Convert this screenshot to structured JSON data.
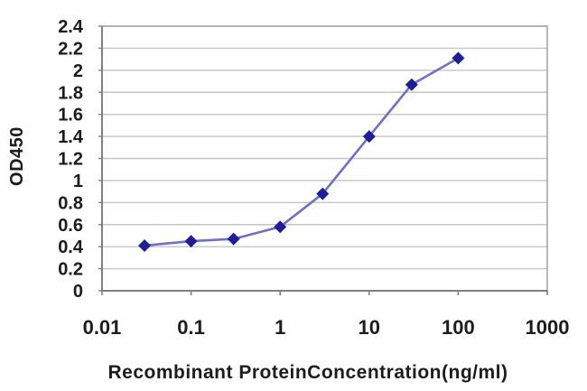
{
  "chart_data": {
    "type": "line",
    "title": "",
    "xlabel": "Recombinant ProteinConcentration(ng/ml)",
    "ylabel": "OD450",
    "xscale": "log",
    "xlim": [
      0.01,
      1000
    ],
    "ylim": [
      0,
      2.4
    ],
    "xticks": [
      {
        "value": 0.01,
        "label": "0.01"
      },
      {
        "value": 0.1,
        "label": "0.1"
      },
      {
        "value": 1,
        "label": "1"
      },
      {
        "value": 10,
        "label": "10"
      },
      {
        "value": 100,
        "label": "100"
      },
      {
        "value": 1000,
        "label": "1000"
      }
    ],
    "yticks": [
      {
        "value": 0,
        "label": "0"
      },
      {
        "value": 0.2,
        "label": "0.2"
      },
      {
        "value": 0.4,
        "label": "0.4"
      },
      {
        "value": 0.6,
        "label": "0.6"
      },
      {
        "value": 0.8,
        "label": "0.8"
      },
      {
        "value": 1,
        "label": "1"
      },
      {
        "value": 1.2,
        "label": "1.2"
      },
      {
        "value": 1.4,
        "label": "1.4"
      },
      {
        "value": 1.6,
        "label": "1.6"
      },
      {
        "value": 1.8,
        "label": "1.8"
      },
      {
        "value": 2,
        "label": "2"
      },
      {
        "value": 2.2,
        "label": "2.2"
      },
      {
        "value": 2.4,
        "label": "2.4"
      }
    ],
    "grid": "horizontal",
    "legend": "none",
    "marker": "diamond",
    "series": [
      {
        "x": [
          0.03,
          0.1,
          0.3,
          1,
          3,
          10,
          30,
          100
        ],
        "y": [
          0.41,
          0.45,
          0.47,
          0.58,
          0.88,
          1.4,
          1.87,
          2.11
        ]
      }
    ],
    "colors": {
      "marker": "#1e1e96",
      "line": "#7070c4",
      "grid": "#c5c5c5",
      "border": "#a6a6a6",
      "axis": "#808080",
      "text": "#1c1c1c",
      "background": "#ffffff"
    }
  }
}
